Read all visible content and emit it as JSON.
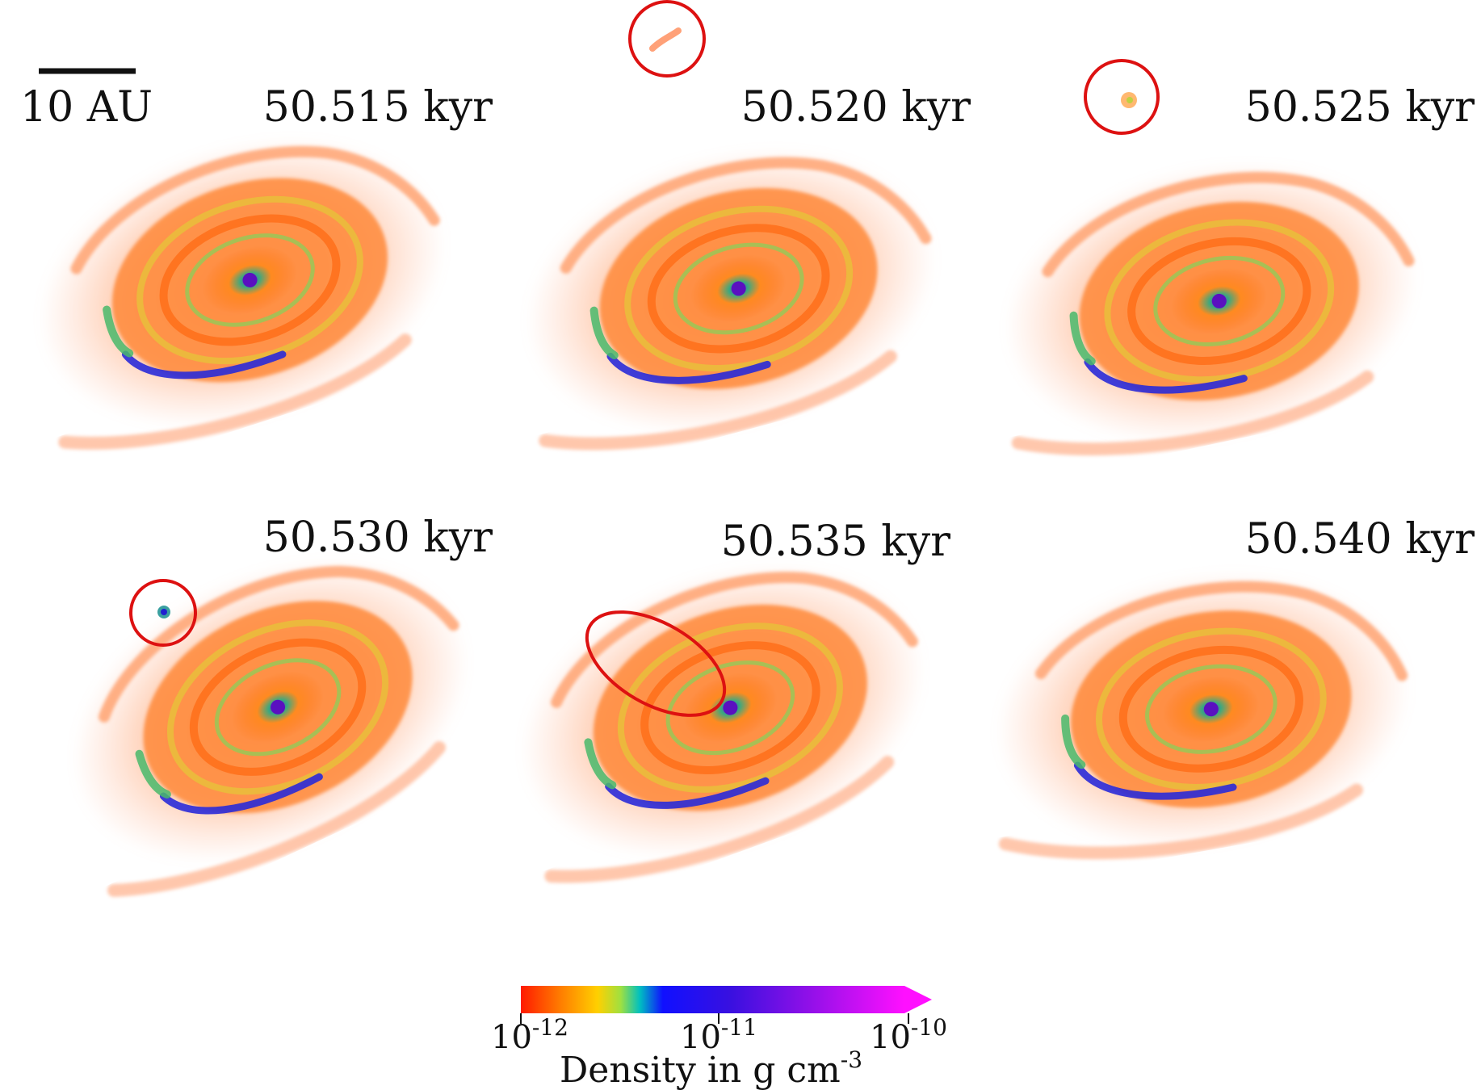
{
  "scale_bar": {
    "label": "10 AU"
  },
  "panels": [
    {
      "time": "50.515 kyr"
    },
    {
      "time": "50.520 kyr"
    },
    {
      "time": "50.525 kyr"
    },
    {
      "time": "50.530 kyr"
    },
    {
      "time": "50.535 kyr"
    },
    {
      "time": "50.540 kyr"
    }
  ],
  "colorbar": {
    "label": "Density in g cm",
    "label_exponent": "-3",
    "ticks": [
      {
        "base": "10",
        "exponent": "-12"
      },
      {
        "base": "10",
        "exponent": "-11"
      },
      {
        "base": "10",
        "exponent": "-10"
      }
    ],
    "colors": [
      "#ff1a00",
      "#ff7a00",
      "#ffb000",
      "#ffe000",
      "#90e040",
      "#00d0a0",
      "#00b0ff",
      "#1010ff",
      "#3a10e0",
      "#7a10e0",
      "#c010f0",
      "#ff10ff"
    ]
  },
  "highlight_color": "#dd1111"
}
